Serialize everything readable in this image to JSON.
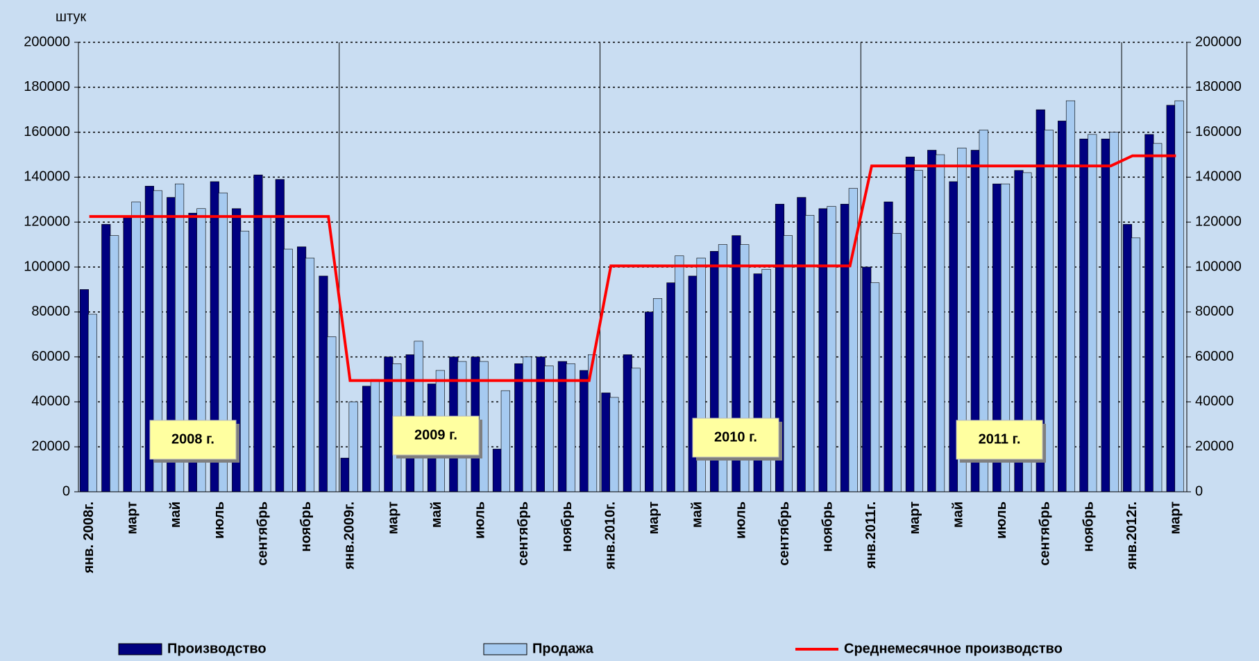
{
  "chart_data": {
    "type": "bar",
    "y_label": "штук",
    "categories": [
      "янв. 2008г.",
      null,
      "март",
      null,
      "май",
      null,
      "июль",
      null,
      "сентябрь",
      null,
      "ноябрь",
      null,
      "янв.2009г.",
      null,
      "март",
      null,
      "май",
      null,
      "июль",
      null,
      "сентябрь",
      null,
      "ноябрь",
      null,
      "янв.2010г.",
      null,
      "март",
      null,
      "май",
      null,
      "июль",
      null,
      "сентябрь",
      null,
      "ноябрь",
      null,
      "янв.2011г.",
      null,
      "март",
      null,
      "май",
      null,
      "июль",
      null,
      "сентябрь",
      null,
      "ноябрь",
      null,
      "янв.2012г.",
      null,
      "март"
    ],
    "series": [
      {
        "name": "Производство",
        "color": "#000080",
        "type": "bar",
        "values": [
          90000,
          119000,
          122000,
          136000,
          131000,
          124000,
          138000,
          126000,
          141000,
          139000,
          109000,
          96000,
          15000,
          47000,
          60000,
          61000,
          48000,
          60000,
          60000,
          19000,
          57000,
          60000,
          58000,
          54000,
          44000,
          61000,
          80000,
          93000,
          96000,
          107000,
          114000,
          97000,
          128000,
          131000,
          126000,
          128000,
          100000,
          129000,
          149000,
          152000,
          138000,
          152000,
          137000,
          143000,
          170000,
          165000,
          157000,
          157000,
          119000,
          159000,
          172000
        ]
      },
      {
        "name": "Продажа",
        "color": "#a6caf0",
        "type": "bar",
        "values": [
          79000,
          114000,
          129000,
          134000,
          137000,
          126000,
          133000,
          116000,
          122000,
          108000,
          104000,
          69000,
          40000,
          50000,
          57000,
          67000,
          54000,
          58000,
          58000,
          45000,
          60000,
          56000,
          57000,
          61000,
          42000,
          55000,
          86000,
          105000,
          104000,
          110000,
          110000,
          99000,
          114000,
          123000,
          127000,
          135000,
          93000,
          115000,
          143000,
          150000,
          153000,
          161000,
          137000,
          142000,
          161000,
          174000,
          159000,
          160000,
          113000,
          155000,
          174000
        ]
      },
      {
        "name": "Среднемесячное производство",
        "color": "#ff0000",
        "type": "line",
        "values": [
          122500,
          122500,
          122500,
          122500,
          122500,
          122500,
          122500,
          122500,
          122500,
          122500,
          122500,
          122500,
          49500,
          49500,
          49500,
          49500,
          49500,
          49500,
          49500,
          49500,
          49500,
          49500,
          49500,
          49500,
          100500,
          100500,
          100500,
          100500,
          100500,
          100500,
          100500,
          100500,
          100500,
          100500,
          100500,
          100500,
          145000,
          145000,
          145000,
          145000,
          145000,
          145000,
          145000,
          145000,
          145000,
          145000,
          145000,
          145000,
          149500,
          149500,
          149500
        ]
      }
    ],
    "annotations": [
      "2008 г.",
      "2009 г.",
      "2010 г.",
      "2011 г."
    ],
    "ylim": [
      0,
      200000
    ],
    "yticks": [
      0,
      20000,
      40000,
      60000,
      80000,
      100000,
      120000,
      140000,
      160000,
      180000,
      200000
    ],
    "grid": true
  }
}
